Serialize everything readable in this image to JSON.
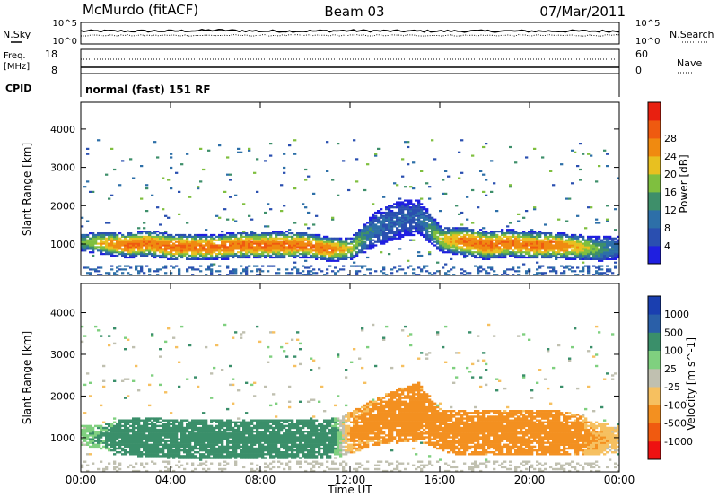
{
  "header": {
    "station": "McMurdo (fitACF)",
    "beam": "Beam 03",
    "date": "07/Mar/2011"
  },
  "noise_panel": {
    "left_label": "N.Sky",
    "right_label": "N.Search",
    "ticks_left": [
      "10^5",
      "10^0"
    ],
    "ticks_right": [
      "10^5",
      "10^0"
    ]
  },
  "freq_panel": {
    "left_label": "Freq.",
    "left_unit": "[MHz]",
    "right_label": "Nave",
    "ticks_left": [
      "18",
      "8"
    ],
    "ticks_right": [
      "60",
      "0"
    ]
  },
  "cpid": {
    "label": "CPID",
    "value": "normal (fast) 151 RF"
  },
  "axes": {
    "ylabel": "Slant Range [km]",
    "xlabel": "Time UT",
    "y_ticks": [
      "1000",
      "2000",
      "3000",
      "4000"
    ],
    "x_ticks": [
      "00:00",
      "04:00",
      "08:00",
      "12:00",
      "16:00",
      "20:00",
      "00:00"
    ]
  },
  "colors": {
    "power": [
      "#1f1fe0",
      "#2a4fb0",
      "#2d6fa8",
      "#3e8f6a",
      "#7fbf3f",
      "#e8c020",
      "#f08a10",
      "#ef5a10",
      "#e82010"
    ],
    "velocity": [
      "#ee1111",
      "#f05a10",
      "#f39020",
      "#f6c060",
      "#c0c0b0",
      "#7fd07f",
      "#3a8f6a",
      "#2a5fa8",
      "#1a3fb0"
    ]
  },
  "chart_data": [
    {
      "type": "line",
      "title": "N.Sky / N.Search",
      "xlim": [
        0,
        24
      ],
      "ylabel_left": "N.Sky",
      "ylabel_right": "N.Search",
      "series": [
        {
          "name": "N.Sky",
          "x": [
            0,
            2,
            4,
            6,
            8,
            10,
            12,
            14,
            16,
            18,
            20,
            22,
            24
          ],
          "values": [
            3,
            3,
            3,
            3.2,
            3,
            3,
            3.1,
            3,
            3,
            3,
            3,
            3,
            3
          ]
        },
        {
          "name": "N.Search",
          "x": [
            0,
            2,
            4,
            6,
            8,
            10,
            12,
            14,
            16,
            18,
            20,
            22,
            24
          ],
          "values": [
            2,
            2,
            2,
            2,
            2,
            2,
            2,
            2,
            2,
            2,
            2,
            2,
            2
          ]
        }
      ]
    },
    {
      "type": "line",
      "title": "Freq. / Nave",
      "xlim": [
        0,
        24
      ],
      "ylim_left": [
        8,
        18
      ],
      "ylim_right": [
        0,
        60
      ],
      "series": [
        {
          "name": "Freq.",
          "x": [
            0,
            24
          ],
          "values": [
            10,
            10
          ]
        },
        {
          "name": "Nave",
          "x": [
            0,
            24
          ],
          "values": [
            34,
            34
          ]
        }
      ]
    },
    {
      "type": "heatmap",
      "title": "Power",
      "xlabel": "Time UT",
      "ylabel": "Slant Range [km]",
      "colorbar_label": "Power [dB]",
      "colorbar_ticks": [
        "4",
        "8",
        "12",
        "16",
        "20",
        "24",
        "28"
      ],
      "xlim": [
        0,
        24
      ],
      "ylim": [
        180,
        4700
      ],
      "x": [
        0,
        1,
        2,
        3,
        4,
        5,
        6,
        7,
        8,
        9,
        10,
        11,
        12,
        13,
        14,
        15,
        16,
        17,
        18,
        19,
        20,
        21,
        22,
        23,
        24
      ],
      "band_center_km": [
        1050,
        1000,
        950,
        1000,
        900,
        900,
        900,
        950,
        950,
        950,
        950,
        850,
        850,
        1350,
        1600,
        1700,
        1100,
        1050,
        950,
        1000,
        950,
        950,
        900,
        850,
        900
      ],
      "band_half_width_km": [
        250,
        300,
        330,
        350,
        350,
        350,
        330,
        350,
        350,
        360,
        330,
        320,
        300,
        450,
        500,
        450,
        330,
        380,
        380,
        360,
        360,
        350,
        330,
        330,
        300
      ],
      "peak_power_db": [
        16,
        24,
        28,
        28,
        28,
        28,
        28,
        28,
        28,
        28,
        28,
        28,
        20,
        10,
        8,
        8,
        20,
        28,
        28,
        28,
        28,
        28,
        24,
        16,
        8
      ]
    },
    {
      "type": "heatmap",
      "title": "Velocity",
      "xlabel": "Time UT",
      "ylabel": "Slant Range [km]",
      "colorbar_label": "Velocity [m s^-1]",
      "colorbar_ticks": [
        "1000",
        "500",
        "100",
        "25",
        "-25",
        "-100",
        "-500",
        "-1000"
      ],
      "xlim": [
        0,
        24
      ],
      "ylim": [
        180,
        4700
      ],
      "x": [
        0,
        1,
        2,
        3,
        4,
        5,
        6,
        7,
        8,
        9,
        10,
        11,
        12,
        13,
        14,
        15,
        16,
        17,
        18,
        19,
        20,
        21,
        22,
        23,
        24
      ],
      "band_center_km": [
        1050,
        1000,
        1000,
        1000,
        950,
        950,
        950,
        950,
        950,
        950,
        950,
        950,
        1100,
        1350,
        1500,
        1600,
        1150,
        1100,
        1100,
        1100,
        1100,
        1100,
        1050,
        950,
        950
      ],
      "band_half_width_km": [
        250,
        300,
        450,
        470,
        470,
        470,
        470,
        470,
        470,
        470,
        470,
        470,
        500,
        550,
        650,
        700,
        500,
        550,
        550,
        550,
        550,
        550,
        500,
        400,
        300
      ],
      "velocity_ms": [
        60,
        150,
        300,
        300,
        300,
        300,
        300,
        300,
        300,
        300,
        300,
        250,
        -150,
        -200,
        -250,
        -250,
        -250,
        -250,
        -250,
        -250,
        -250,
        -250,
        -200,
        -100,
        -60
      ]
    }
  ]
}
